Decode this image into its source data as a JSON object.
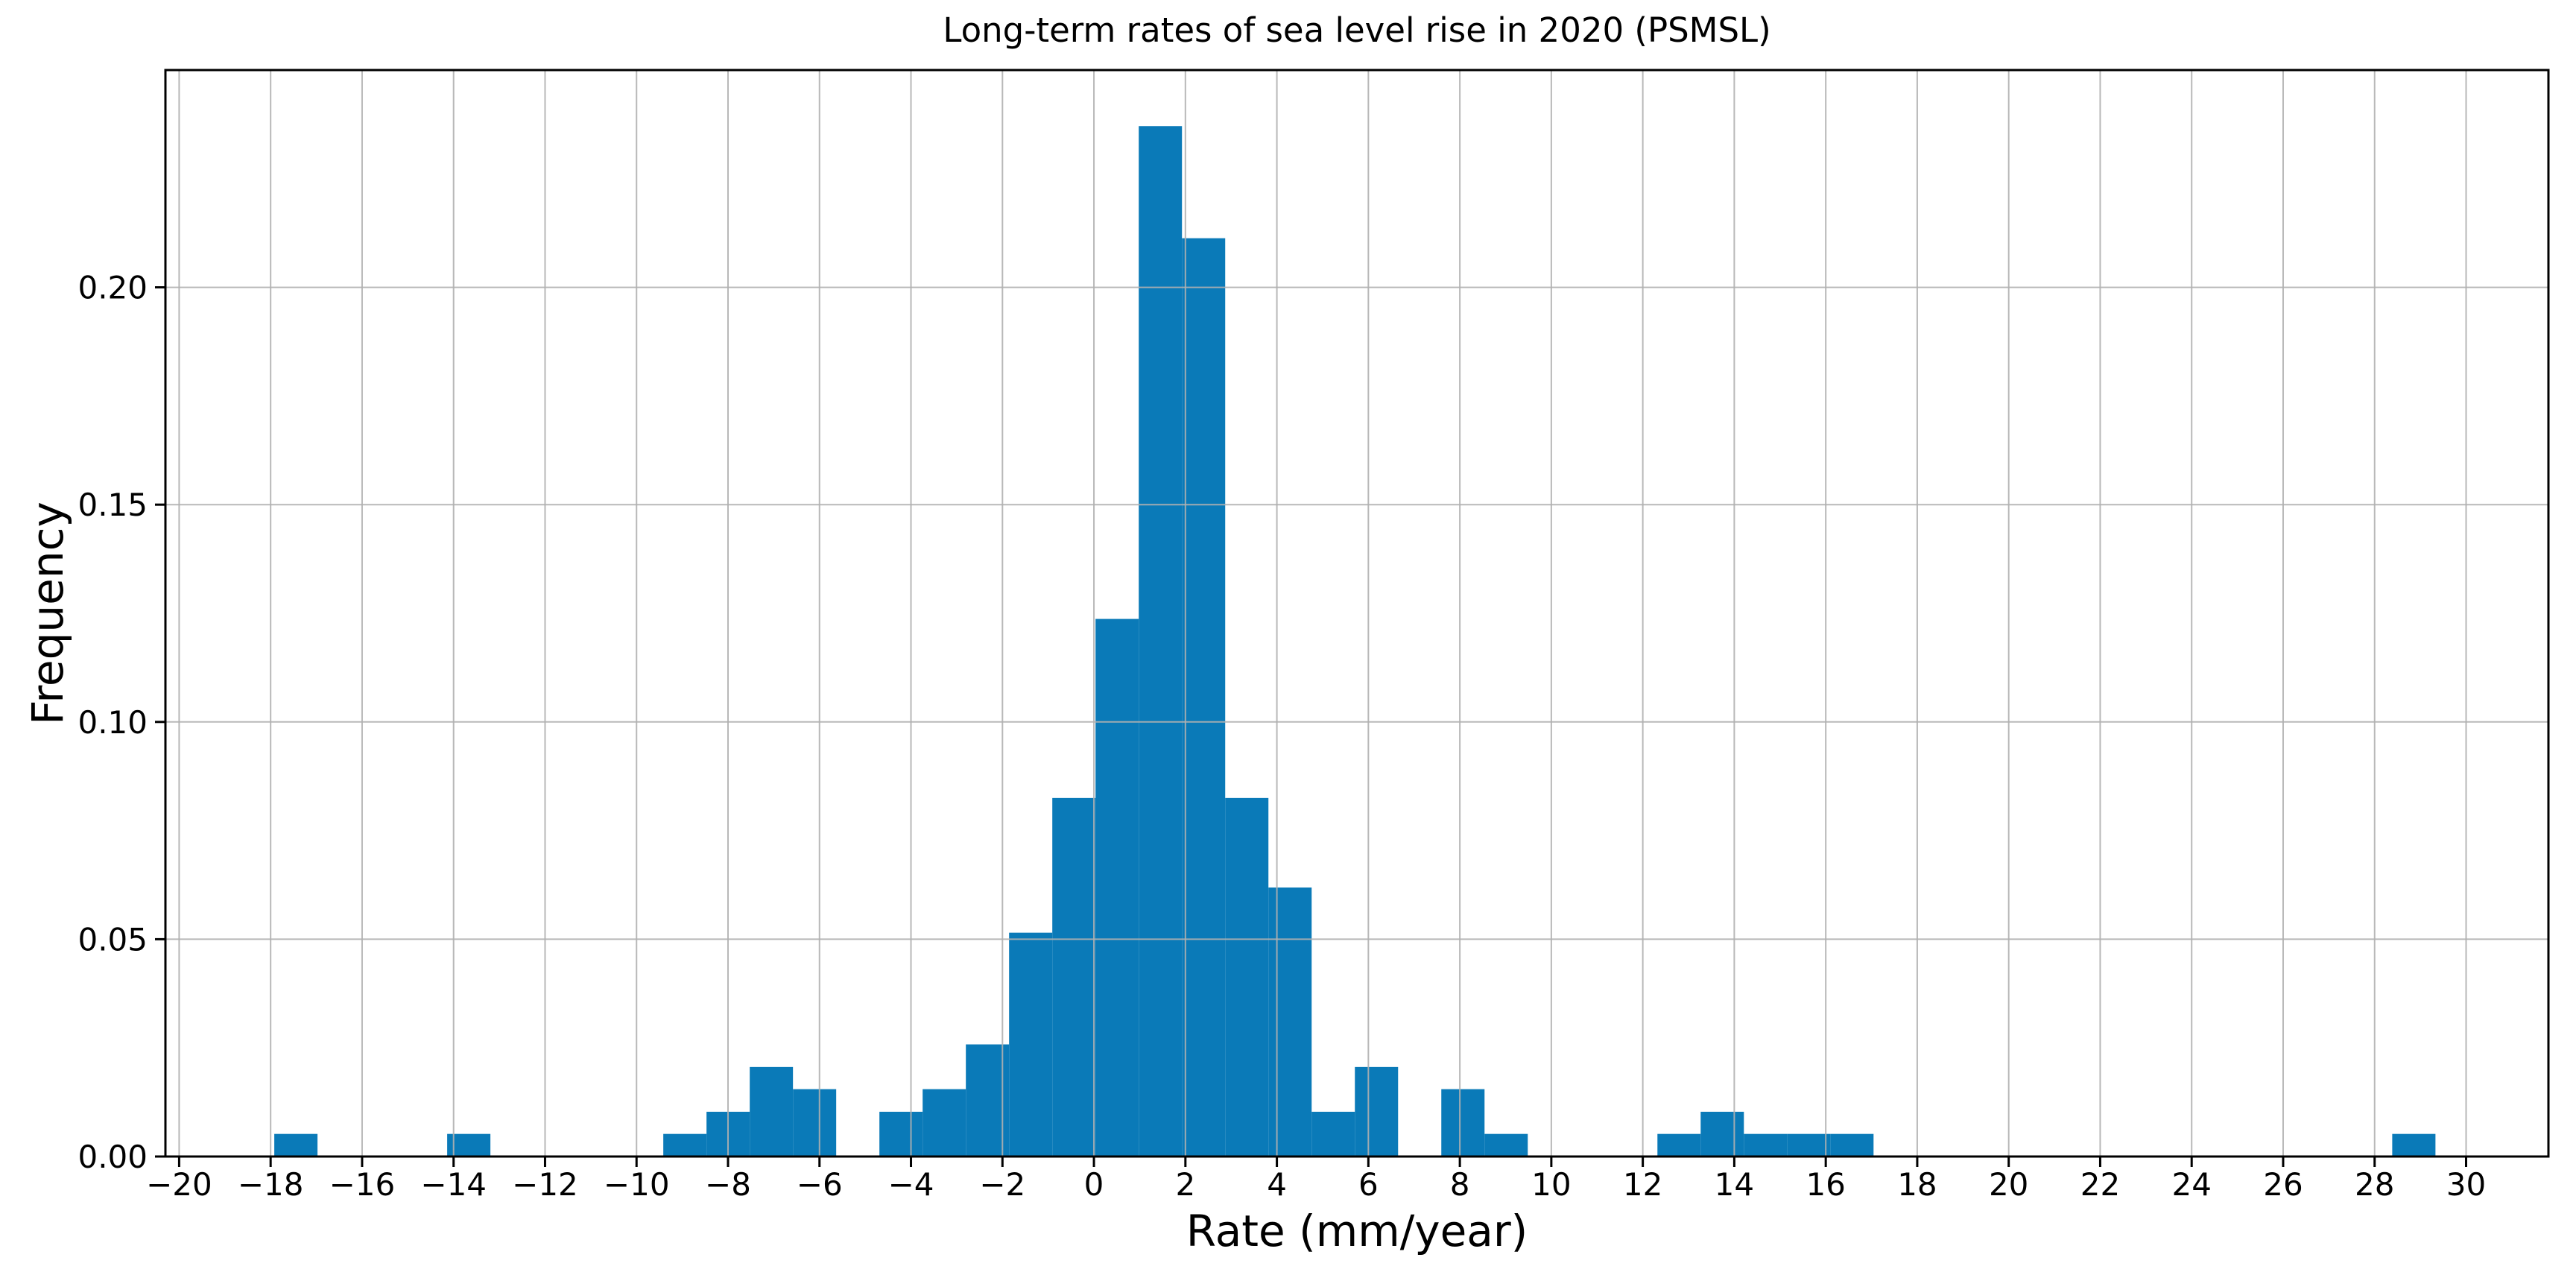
{
  "figure": {
    "background": "#ffffff"
  },
  "chart_data": {
    "type": "bar",
    "subtype": "histogram",
    "title": "Long-term rates of sea level rise in 2020 (PSMSL)",
    "xlabel": "Rate (mm/year)",
    "ylabel": "Frequency",
    "grid": true,
    "legend": "none",
    "bar_color": "#0a7ab8",
    "grid_color": "#b0b0b0",
    "spine_color": "#000000",
    "xlim": [
      -20.3,
      31.8
    ],
    "ylim": [
      0,
      0.25
    ],
    "bin_start": -17.92,
    "bin_width": 0.945,
    "bin_heights": [
      0.0052,
      0,
      0,
      0,
      0.0052,
      0,
      0,
      0,
      0,
      0.0052,
      0.0103,
      0.0206,
      0.0155,
      0,
      0.0103,
      0.0155,
      0.0258,
      0.0515,
      0.0825,
      0.1237,
      0.2371,
      0.2113,
      0.0825,
      0.0619,
      0.0103,
      0.0206,
      0,
      0.0155,
      0.0052,
      0,
      0,
      0,
      0.0052,
      0.0103,
      0.0052,
      0.0052,
      0.0052,
      0,
      0,
      0,
      0,
      0,
      0,
      0,
      0,
      0,
      0,
      0,
      0,
      0.0052
    ],
    "xticks": [
      -20,
      -18,
      -16,
      -14,
      -12,
      -10,
      -8,
      -6,
      -4,
      -2,
      0,
      2,
      4,
      6,
      8,
      10,
      12,
      14,
      16,
      18,
      20,
      22,
      24,
      26,
      28,
      30
    ],
    "xtick_labels": [
      "−20",
      "−18",
      "−16",
      "−14",
      "−12",
      "−10",
      "−8",
      "−6",
      "−4",
      "−2",
      "0",
      "2",
      "4",
      "6",
      "8",
      "10",
      "12",
      "14",
      "16",
      "18",
      "20",
      "22",
      "24",
      "26",
      "28",
      "30"
    ],
    "yticks": [
      0,
      0.05,
      0.1,
      0.15,
      0.2
    ],
    "ytick_labels": [
      "0.00",
      "0.05",
      "0.10",
      "0.15",
      "0.20"
    ]
  }
}
